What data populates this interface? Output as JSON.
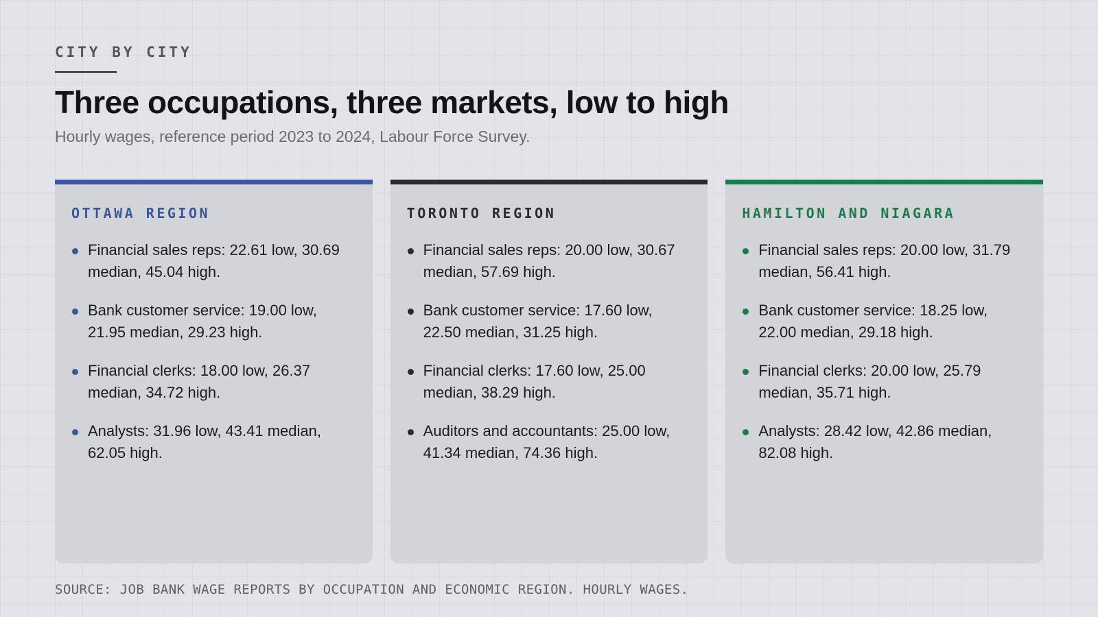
{
  "kicker": "CITY BY CITY",
  "title": "Three occupations, three markets, low to high",
  "subtitle": "Hourly wages, reference period 2023 to 2024, Labour Force Survey.",
  "cards": [
    {
      "title": "OTTAWA REGION",
      "accent": "#3b5998",
      "items": [
        "Financial sales reps: 22.61 low, 30.69 median, 45.04 high.",
        "Bank customer service: 19.00 low, 21.95 median, 29.23 high.",
        "Financial clerks: 18.00 low, 26.37 median, 34.72 high.",
        "Analysts: 31.96 low, 43.41 median, 62.05 high."
      ]
    },
    {
      "title": "TORONTO REGION",
      "accent": "#2b2b2e",
      "items": [
        "Financial sales reps: 20.00 low, 30.67 median, 57.69 high.",
        "Bank customer service: 17.60 low, 22.50 median, 31.25 high.",
        "Financial clerks: 17.60 low, 25.00 median, 38.29 high.",
        "Auditors and accountants: 25.00 low, 41.34 median, 74.36 high."
      ]
    },
    {
      "title": "HAMILTON AND NIAGARA",
      "accent": "#1e7a4c",
      "items": [
        "Financial sales reps: 20.00 low, 31.79 median, 56.41 high.",
        "Bank customer service: 18.25 low, 22.00 median, 29.18 high.",
        "Financial clerks: 20.00 low, 25.79 median, 35.71 high.",
        "Analysts: 28.42 low, 42.86 median, 82.08 high."
      ]
    }
  ],
  "source": "SOURCE: JOB BANK WAGE REPORTS BY OCCUPATION AND ECONOMIC REGION. HOURLY WAGES."
}
